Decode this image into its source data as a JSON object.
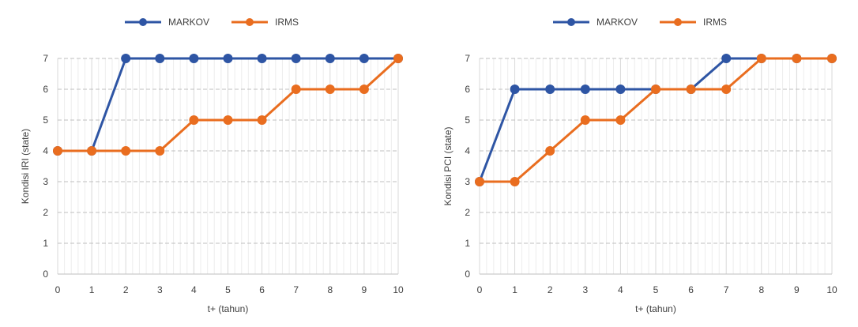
{
  "colors": {
    "markov": "#2E55A4",
    "irms": "#E96D1F",
    "grid": "#D9D9D9",
    "minor_grid": "#EDEDED",
    "text": "#404040"
  },
  "chart_data": [
    {
      "type": "line",
      "x": [
        0,
        1,
        2,
        3,
        4,
        5,
        6,
        7,
        8,
        9,
        10
      ],
      "xlabel": "t+ (tahun)",
      "ylabel": "Kondisi IRI (state)",
      "ylim": [
        0,
        7
      ],
      "yticks": [
        0,
        1,
        2,
        3,
        4,
        5,
        6,
        7
      ],
      "grid": true,
      "legend": "top",
      "series": [
        {
          "name": "MARKOV",
          "color": "#2E55A4",
          "values": [
            4,
            4,
            7,
            7,
            7,
            7,
            7,
            7,
            7,
            7,
            7
          ]
        },
        {
          "name": "IRMS",
          "color": "#E96D1F",
          "values": [
            4,
            4,
            4,
            4,
            5,
            5,
            5,
            6,
            6,
            6,
            7
          ]
        }
      ]
    },
    {
      "type": "line",
      "x": [
        0,
        1,
        2,
        3,
        4,
        5,
        6,
        7,
        8,
        9,
        10
      ],
      "xlabel": "t+ (tahun)",
      "ylabel": "Kondisi PCI (state)",
      "ylim": [
        0,
        7
      ],
      "yticks": [
        0,
        1,
        2,
        3,
        4,
        5,
        6,
        7
      ],
      "grid": true,
      "legend": "top",
      "series": [
        {
          "name": "MARKOV",
          "color": "#2E55A4",
          "values": [
            3,
            6,
            6,
            6,
            6,
            6,
            6,
            7,
            7,
            7,
            7
          ]
        },
        {
          "name": "IRMS",
          "color": "#E96D1F",
          "values": [
            3,
            3,
            4,
            5,
            5,
            6,
            6,
            6,
            7,
            7,
            7
          ]
        }
      ]
    }
  ]
}
